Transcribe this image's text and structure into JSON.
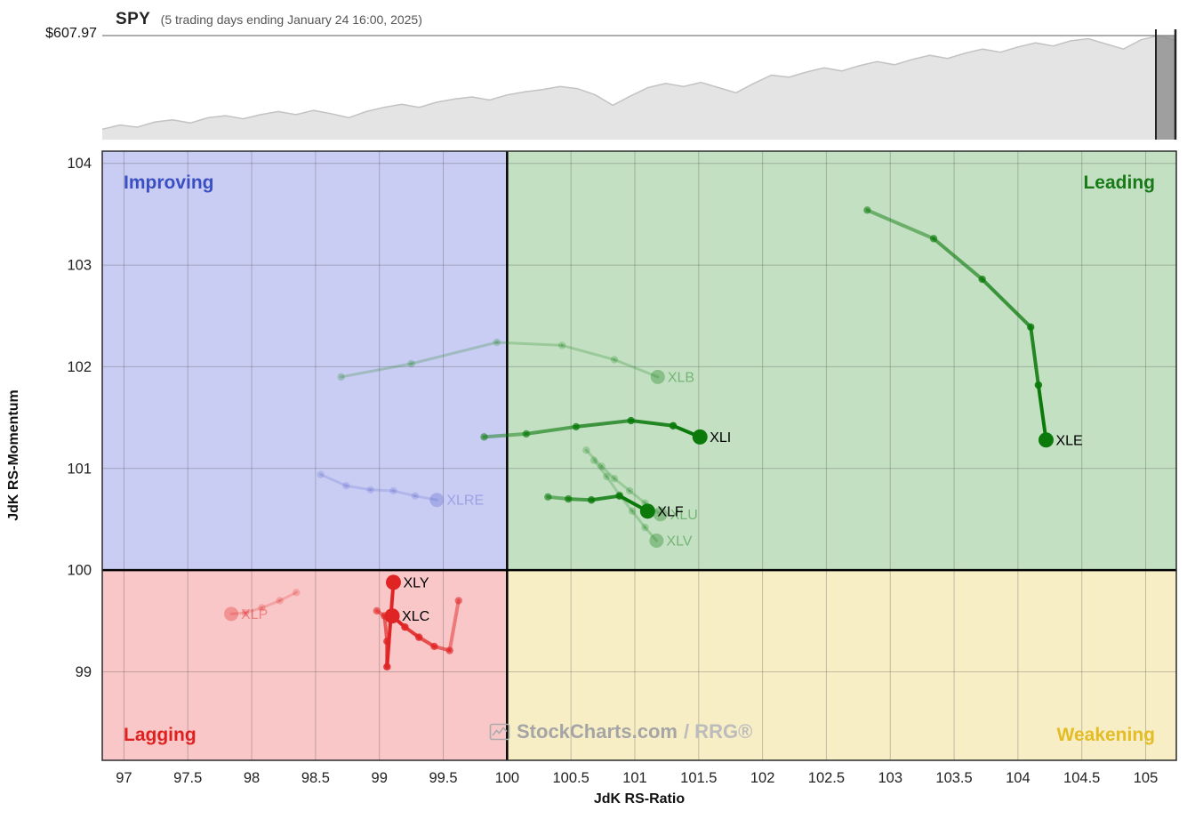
{
  "chart_data": [
    {
      "type": "area",
      "title": "SPY",
      "subtitle": "(5 trading days ending January 24 16:00, 2025)",
      "price_high_label": "$607.97",
      "values": [
        0.1,
        0.14,
        0.12,
        0.17,
        0.19,
        0.16,
        0.21,
        0.23,
        0.2,
        0.24,
        0.27,
        0.24,
        0.28,
        0.25,
        0.21,
        0.27,
        0.31,
        0.34,
        0.31,
        0.36,
        0.39,
        0.41,
        0.38,
        0.43,
        0.46,
        0.48,
        0.51,
        0.49,
        0.43,
        0.33,
        0.42,
        0.5,
        0.54,
        0.51,
        0.55,
        0.5,
        0.45,
        0.54,
        0.62,
        0.6,
        0.65,
        0.69,
        0.66,
        0.71,
        0.75,
        0.72,
        0.77,
        0.81,
        0.78,
        0.83,
        0.87,
        0.84,
        0.89,
        0.93,
        0.9,
        0.95,
        0.97,
        0.92,
        0.87,
        0.96,
        1.0,
        0.95
      ]
    },
    {
      "type": "scatter",
      "xlabel": "JdK RS-Ratio",
      "ylabel": "JdK RS-Momentum",
      "xlim": [
        96.83,
        105.24
      ],
      "ylim": [
        98.13,
        104.12
      ],
      "center": [
        100,
        100
      ],
      "x_ticks": [
        97,
        97.5,
        98,
        98.5,
        99,
        99.5,
        100,
        100.5,
        101,
        101.5,
        102,
        102.5,
        103,
        103.5,
        104,
        104.5,
        105
      ],
      "y_ticks": [
        99,
        100,
        101,
        102,
        103,
        104
      ],
      "grid": true,
      "quadrants": [
        {
          "name": "Improving",
          "color": "#c9cdf3",
          "label_color": "#3a4fc1"
        },
        {
          "name": "Leading",
          "color": "#c3e0c3",
          "label_color": "#177a17"
        },
        {
          "name": "Lagging",
          "color": "#f9c7c7",
          "label_color": "#e02020"
        },
        {
          "name": "Weakening",
          "color": "#f7eec6",
          "label_color": "#e4bc25"
        }
      ],
      "series": [
        {
          "symbol": "XLB",
          "state": "faded",
          "color": "#0b7a0b",
          "points": [
            [
              98.7,
              101.9
            ],
            [
              99.25,
              102.03
            ],
            [
              99.92,
              102.24
            ],
            [
              100.43,
              102.21
            ],
            [
              100.84,
              102.07
            ],
            [
              101.18,
              101.9
            ]
          ]
        },
        {
          "symbol": "XLU",
          "state": "faded",
          "color": "#0b7a0b",
          "points": [
            [
              100.62,
              101.18
            ],
            [
              100.74,
              101.02
            ],
            [
              100.84,
              100.9
            ],
            [
              100.96,
              100.78
            ],
            [
              101.08,
              100.66
            ],
            [
              101.2,
              100.55
            ]
          ]
        },
        {
          "symbol": "XLV",
          "state": "faded",
          "color": "#0b7a0b",
          "points": [
            [
              100.68,
              101.08
            ],
            [
              100.78,
              100.92
            ],
            [
              100.88,
              100.74
            ],
            [
              100.98,
              100.58
            ],
            [
              101.08,
              100.42
            ],
            [
              101.17,
              100.29
            ]
          ]
        },
        {
          "symbol": "XLRE",
          "state": "faded",
          "color": "#5a64cc",
          "points": [
            [
              98.54,
              100.94
            ],
            [
              98.74,
              100.83
            ],
            [
              98.93,
              100.79
            ],
            [
              99.11,
              100.78
            ],
            [
              99.28,
              100.73
            ],
            [
              99.45,
              100.69
            ]
          ]
        },
        {
          "symbol": "XLP",
          "state": "faded",
          "color": "#e02424",
          "points": [
            [
              98.35,
              99.78
            ],
            [
              98.22,
              99.7
            ],
            [
              98.08,
              99.63
            ],
            [
              97.95,
              99.58
            ],
            [
              97.84,
              99.57
            ]
          ]
        },
        {
          "symbol": "XLE",
          "state": "active",
          "color": "#0b7a0b",
          "points": [
            [
              102.82,
              103.54
            ],
            [
              103.34,
              103.26
            ],
            [
              103.72,
              102.86
            ],
            [
              104.1,
              102.39
            ],
            [
              104.16,
              101.82
            ],
            [
              104.22,
              101.28
            ]
          ]
        },
        {
          "symbol": "XLI",
          "state": "active",
          "color": "#0b7a0b",
          "points": [
            [
              99.82,
              101.31
            ],
            [
              100.15,
              101.34
            ],
            [
              100.54,
              101.41
            ],
            [
              100.97,
              101.47
            ],
            [
              101.3,
              101.42
            ],
            [
              101.51,
              101.31
            ]
          ]
        },
        {
          "symbol": "XLF",
          "state": "active",
          "color": "#0b7a0b",
          "points": [
            [
              100.32,
              100.72
            ],
            [
              100.48,
              100.7
            ],
            [
              100.66,
              100.69
            ],
            [
              100.88,
              100.73
            ],
            [
              101.1,
              100.58
            ]
          ]
        },
        {
          "symbol": "XLC",
          "state": "active",
          "color": "#e02424",
          "points": [
            [
              99.62,
              99.7
            ],
            [
              99.55,
              99.21
            ],
            [
              99.43,
              99.25
            ],
            [
              99.31,
              99.34
            ],
            [
              99.2,
              99.44
            ],
            [
              99.1,
              99.55
            ]
          ]
        },
        {
          "symbol": "XLY",
          "state": "active",
          "color": "#e02424",
          "points": [
            [
              98.98,
              99.6
            ],
            [
              99.04,
              99.55
            ],
            [
              99.06,
              99.3
            ],
            [
              99.06,
              99.05
            ],
            [
              99.11,
              99.88
            ]
          ]
        }
      ],
      "watermark_main": "StockCharts.com",
      "watermark_rrg": "/ RRG®"
    }
  ]
}
